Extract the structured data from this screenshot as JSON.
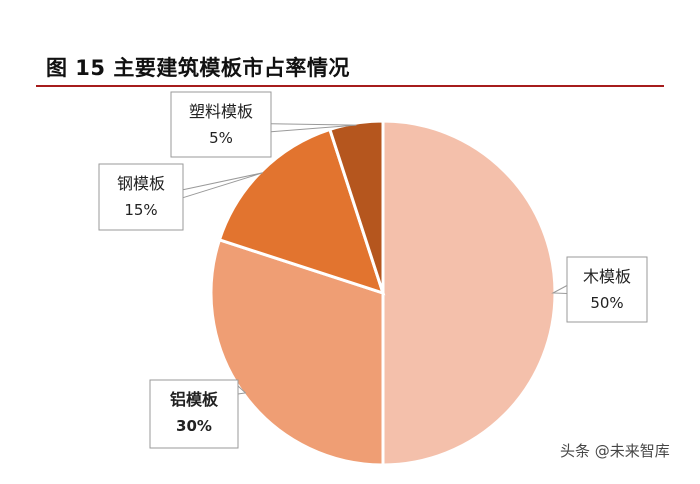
{
  "header": {
    "title": "图 15 主要建筑模板市占率情况"
  },
  "chart_data": {
    "type": "pie",
    "title": "图 15 主要建筑模板市占率情况",
    "slices": [
      {
        "label": "木模板",
        "value": 50,
        "pct_label": "50%",
        "color": "#f4c0ab",
        "bold": false
      },
      {
        "label": "铝模板",
        "value": 30,
        "pct_label": "30%",
        "color": "#ef9e74",
        "bold": true
      },
      {
        "label": "钢模板",
        "value": 15,
        "pct_label": "15%",
        "color": "#e2742f",
        "bold": false
      },
      {
        "label": "塑料模板",
        "value": 5,
        "pct_label": "5%",
        "color": "#b5561e",
        "bold": false
      }
    ]
  },
  "watermark": {
    "text": "头条 @未来智库"
  }
}
